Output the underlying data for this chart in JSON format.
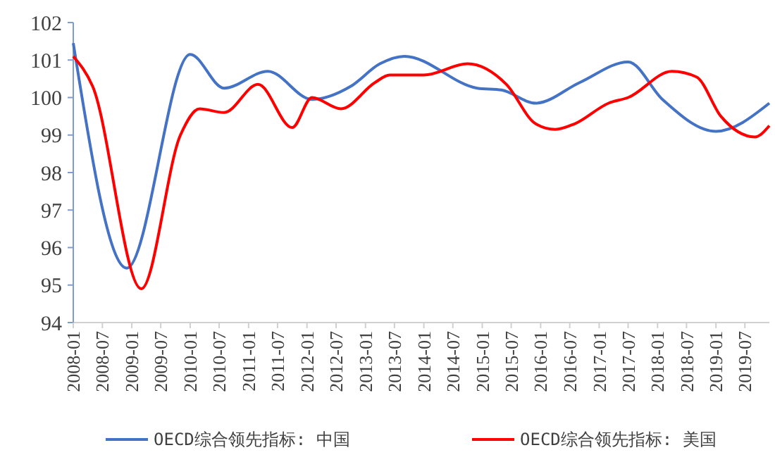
{
  "chart_data": {
    "type": "line",
    "ylim": [
      94,
      102
    ],
    "yticks": [
      94,
      95,
      96,
      97,
      98,
      99,
      100,
      101,
      102
    ],
    "xlim": [
      "2008-01",
      "2019-12"
    ],
    "xticks": [
      "2008-01",
      "2008-07",
      "2009-01",
      "2009-07",
      "2010-01",
      "2010-07",
      "2011-01",
      "2011-07",
      "2012-01",
      "2012-07",
      "2013-01",
      "2013-07",
      "2014-01",
      "2014-07",
      "2015-01",
      "2015-07",
      "2016-01",
      "2016-07",
      "2017-01",
      "2017-07",
      "2018-01",
      "2018-07",
      "2019-01",
      "2019-07"
    ],
    "legend": "bottom",
    "grid": false,
    "marker": "none",
    "line_style": "solid",
    "series": [
      {
        "name": "OECD综合领先指标: 中国",
        "color": "#4472c4",
        "x": [
          "2008-01",
          "2008-12",
          "2010-01",
          "2010-08",
          "2011-05",
          "2012-02",
          "2012-10",
          "2013-04",
          "2013-09",
          "2014-12",
          "2015-05",
          "2015-12",
          "2016-09",
          "2017-07",
          "2018-02",
          "2019-01",
          "2019-12"
        ],
        "values": [
          101.45,
          95.45,
          101.15,
          100.25,
          100.7,
          99.95,
          100.3,
          100.9,
          101.1,
          100.25,
          100.2,
          99.85,
          100.4,
          100.95,
          99.95,
          99.1,
          99.85
        ]
      },
      {
        "name": "OECD综合领先指标: 美国",
        "color": "#ff0000",
        "x": [
          "2008-01",
          "2008-05",
          "2009-03",
          "2009-11",
          "2010-03",
          "2010-08",
          "2011-03",
          "2011-10",
          "2012-02",
          "2012-08",
          "2013-03",
          "2013-06",
          "2014-01",
          "2014-10",
          "2015-06",
          "2015-12",
          "2016-04",
          "2016-08",
          "2017-03",
          "2017-07",
          "2018-04",
          "2018-09",
          "2019-02",
          "2019-09",
          "2019-12"
        ],
        "values": [
          101.1,
          100.3,
          94.9,
          99.0,
          99.7,
          99.6,
          100.35,
          99.2,
          100.0,
          99.7,
          100.4,
          100.6,
          100.6,
          100.9,
          100.35,
          99.3,
          99.15,
          99.3,
          99.85,
          100.0,
          100.7,
          100.55,
          99.5,
          98.95,
          99.25
        ]
      }
    ]
  }
}
